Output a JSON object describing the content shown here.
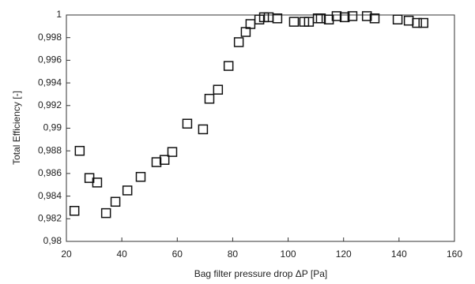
{
  "chart_data": {
    "type": "scatter",
    "xlabel": "Bag filter pressure drop ΔP [Pa]",
    "ylabel": "Total Efficiency [-]",
    "x": [
      22.9,
      24.8,
      28.3,
      31.1,
      34.3,
      37.7,
      42,
      46.8,
      52.5,
      55.4,
      58.2,
      63.6,
      69.3,
      71.6,
      74.7,
      78.5,
      82.2,
      84.7,
      86.4,
      89.6,
      91.3,
      93,
      96.1,
      102.1,
      105.8,
      107.5,
      110.7,
      111.8,
      114.7,
      117.5,
      120.4,
      123.2,
      128.4,
      131.2,
      139.5,
      143.5,
      146.5,
      148.8
    ],
    "values": [
      0.9827,
      0.988,
      0.9856,
      0.9852,
      0.9825,
      0.9835,
      0.9845,
      0.9857,
      0.987,
      0.9872,
      0.9879,
      0.9904,
      0.9899,
      0.9926,
      0.9934,
      0.9955,
      0.9976,
      0.9985,
      0.9992,
      0.9996,
      0.9998,
      0.9998,
      0.9997,
      0.9994,
      0.9994,
      0.9994,
      0.9997,
      0.9997,
      0.9996,
      0.9999,
      0.9998,
      0.9999,
      0.9999,
      0.9997,
      0.9996,
      0.9995,
      0.9993,
      0.9993
    ],
    "color": "#111111",
    "xlim": [
      20,
      160
    ],
    "xticks": [
      20,
      40,
      60,
      80,
      100,
      120,
      140,
      160
    ],
    "ylim": [
      0.98,
      1
    ],
    "yticks": [
      {
        "value": 0.98,
        "label": "0,98"
      },
      {
        "value": 0.982,
        "label": "0,982"
      },
      {
        "value": 0.984,
        "label": "0,984"
      },
      {
        "value": 0.986,
        "label": "0,986"
      },
      {
        "value": 0.988,
        "label": "0,988"
      },
      {
        "value": 0.99,
        "label": "0,99"
      },
      {
        "value": 0.992,
        "label": "0,992"
      },
      {
        "value": 0.994,
        "label": "0,994"
      },
      {
        "value": 0.996,
        "label": "0,996"
      },
      {
        "value": 0.998,
        "label": "0,998"
      },
      1
    ],
    "grid": false
  }
}
